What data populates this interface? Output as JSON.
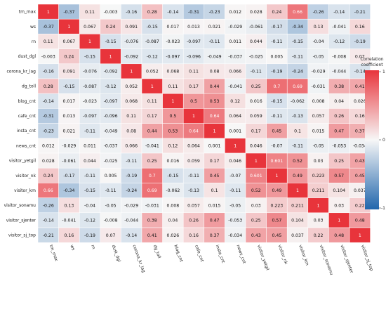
{
  "chart_data": {
    "type": "heatmap",
    "title": "",
    "variables": [
      "tm_max",
      "ws",
      "rn",
      "dust_dgl",
      "corona_kr_lag",
      "dg_toll",
      "blog_cnt",
      "cafe_cnt",
      "insta_cnt",
      "news_cnt",
      "visitor_yetgil",
      "visitor_nk",
      "visitor_km",
      "visitor_sonamu",
      "visitor_sjenter",
      "visitor_sj_top"
    ],
    "matrix": [
      [
        1,
        -0.37,
        0.11,
        -0.003,
        -0.16,
        0.28,
        -0.14,
        -0.31,
        -0.23,
        0.012,
        0.028,
        0.24,
        0.66,
        -0.26,
        -0.14,
        -0.21
      ],
      [
        -0.37,
        1,
        0.067,
        0.24,
        0.091,
        -0.15,
        0.017,
        0.013,
        0.021,
        -0.029,
        -0.061,
        -0.17,
        -0.34,
        0.13,
        -0.041,
        0.16
      ],
      [
        0.11,
        0.067,
        1,
        -0.15,
        -0.076,
        -0.087,
        -0.023,
        -0.097,
        -0.11,
        0.011,
        0.044,
        -0.11,
        -0.15,
        -0.04,
        -0.12,
        -0.19
      ],
      [
        -0.003,
        0.24,
        -0.15,
        1,
        -0.092,
        -0.12,
        -0.097,
        -0.096,
        -0.049,
        -0.037,
        -0.025,
        0.005,
        -0.11,
        -0.05,
        -0.008,
        0.07
      ],
      [
        -0.16,
        0.091,
        -0.076,
        -0.092,
        1,
        0.052,
        0.068,
        0.11,
        0.08,
        0.066,
        -0.11,
        -0.19,
        -0.24,
        -0.029,
        -0.044,
        -0.14
      ],
      [
        0.28,
        -0.15,
        -0.087,
        -0.12,
        0.052,
        1,
        0.11,
        0.17,
        0.44,
        -0.041,
        0.25,
        0.7,
        0.69,
        -0.031,
        0.38,
        0.41
      ],
      [
        -0.14,
        0.017,
        -0.023,
        -0.097,
        0.068,
        0.11,
        1,
        0.5,
        0.53,
        0.12,
        0.016,
        -0.15,
        -0.062,
        0.008,
        0.04,
        0.026
      ],
      [
        -0.31,
        0.013,
        -0.097,
        -0.096,
        0.11,
        0.17,
        0.5,
        1,
        0.64,
        0.064,
        0.059,
        -0.11,
        -0.13,
        0.057,
        0.26,
        0.16
      ],
      [
        -0.23,
        0.021,
        -0.11,
        -0.049,
        0.08,
        0.44,
        0.53,
        0.64,
        1,
        0.001,
        0.17,
        0.45,
        0.1,
        0.015,
        0.47,
        0.37
      ],
      [
        0.012,
        -0.029,
        0.011,
        -0.037,
        0.066,
        -0.041,
        0.12,
        0.064,
        0.001,
        1,
        0.046,
        -0.07,
        -0.11,
        -0.05,
        -0.053,
        -0.034
      ],
      [
        0.028,
        -0.061,
        0.044,
        -0.025,
        -0.11,
        0.25,
        0.016,
        0.059,
        0.17,
        0.046,
        1,
        0.601,
        0.52,
        0.03,
        0.25,
        0.43
      ],
      [
        0.24,
        -0.17,
        -0.11,
        0.005,
        -0.19,
        0.7,
        -0.15,
        -0.11,
        0.45,
        -0.07,
        0.601,
        1,
        0.49,
        0.223,
        0.57,
        0.45
      ],
      [
        0.66,
        -0.34,
        -0.15,
        -0.11,
        -0.24,
        0.69,
        -0.062,
        -0.13,
        0.1,
        -0.11,
        0.52,
        0.49,
        1,
        0.211,
        0.104,
        0.037
      ],
      [
        -0.26,
        0.13,
        -0.04,
        -0.05,
        -0.029,
        -0.031,
        0.008,
        0.057,
        0.015,
        -0.05,
        0.03,
        0.223,
        0.211,
        1,
        0.03,
        0.22
      ],
      [
        -0.14,
        -0.041,
        -0.12,
        -0.008,
        -0.044,
        0.38,
        0.04,
        0.26,
        0.47,
        -0.053,
        0.25,
        0.57,
        0.104,
        0.03,
        1,
        0.48
      ],
      [
        -0.21,
        0.16,
        -0.19,
        0.07,
        -0.14,
        0.41,
        0.026,
        0.16,
        0.37,
        -0.034,
        0.43,
        0.45,
        0.037,
        0.22,
        0.48,
        1
      ]
    ],
    "colorbar": {
      "title_line1": "Correlation",
      "title_line2": "coefficient",
      "range": [
        -1,
        1
      ],
      "ticks": [
        "1",
        "0",
        "-1"
      ],
      "colors": {
        "negative": "#2166ac",
        "zero": "#f7f7f7",
        "positive": "#e8343b"
      }
    },
    "grid": false,
    "legend_placement": "right"
  }
}
